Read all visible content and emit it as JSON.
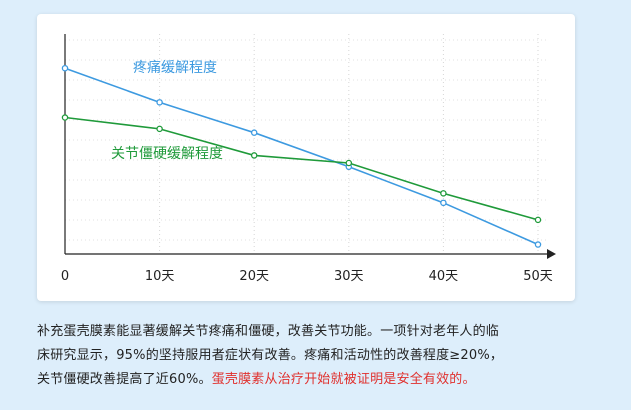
{
  "chart_data": {
    "type": "line",
    "categories": [
      "0",
      "10天",
      "20天",
      "30天",
      "40天",
      "50天"
    ],
    "series": [
      {
        "name": "疼痛缓解程度",
        "color": "#3d9ae0",
        "values": [
          88,
          70,
          54,
          36,
          17,
          -5
        ]
      },
      {
        "name": "关节僵硬缓解程度",
        "color": "#1f9a3a",
        "values": [
          62,
          56,
          42,
          38,
          22,
          8
        ]
      }
    ],
    "ylim": [
      -10,
      105
    ],
    "grid": true,
    "axis_color": "#222222"
  },
  "caption": {
    "line1": "补充蛋壳膜素能显著缓解关节疼痛和僵硬，改善关节功能。一项针对老年人的临",
    "line2": "床研究显示，95%的坚持服用者症状有改善。疼痛和活动性的改善程度≥20%，",
    "line3_normal": "关节僵硬改善提高了近60%。",
    "line3_highlight": "蛋壳膜素从治疗开始就被证明是安全有效的。",
    "highlight_color": "#e0302d"
  }
}
